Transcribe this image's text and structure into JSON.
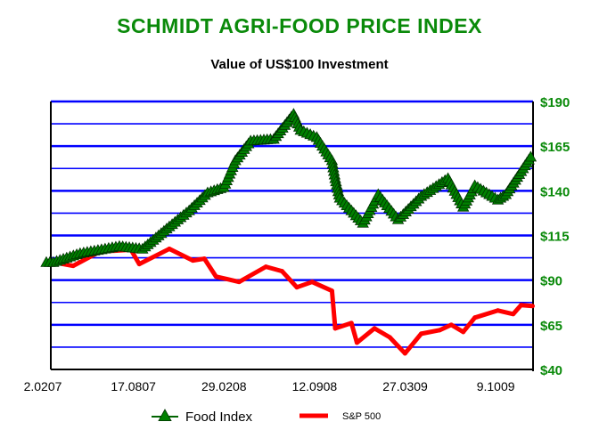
{
  "chart_data": {
    "type": "line",
    "title": "SCHMIDT AGRI-FOOD PRICE INDEX",
    "subtitle": "Value of US$100 Investment",
    "xlim": [
      "2007-02-02",
      "2009-12-21"
    ],
    "ylim": [
      40,
      190
    ],
    "y_axis_side": "right",
    "y_ticks": [
      {
        "v": 190,
        "label": "$190"
      },
      {
        "v": 165,
        "label": "$165"
      },
      {
        "v": 140,
        "label": "$140"
      },
      {
        "v": 115,
        "label": "$115"
      },
      {
        "v": 90,
        "label": "$90"
      },
      {
        "v": 65,
        "label": "$65"
      },
      {
        "v": 40,
        "label": "$40"
      }
    ],
    "gridlines_every": 12.5,
    "grid": true,
    "grid_color": "#0000ff",
    "x_ticks": [
      {
        "date": "2007-02-02",
        "label": "2.0207"
      },
      {
        "date": "2007-08-17",
        "label": "17.0807"
      },
      {
        "date": "2008-02-29",
        "label": "29.0208"
      },
      {
        "date": "2008-09-12",
        "label": "12.0908"
      },
      {
        "date": "2009-03-27",
        "label": "27.0309"
      },
      {
        "date": "2009-10-09",
        "label": "9.1009"
      }
    ],
    "legend_position": "bottom",
    "series": [
      {
        "name": "Food Index",
        "color": "#006400",
        "marker": "triangle",
        "marker_color": "#008000",
        "points": [
          [
            "2007-02-02",
            100
          ],
          [
            "2007-02-17",
            100
          ],
          [
            "2007-04-16",
            105
          ],
          [
            "2007-07-10",
            109
          ],
          [
            "2007-08-29",
            107.5
          ],
          [
            "2007-10-26",
            120
          ],
          [
            "2007-12-08",
            129
          ],
          [
            "2008-01-17",
            139
          ],
          [
            "2008-02-21",
            142
          ],
          [
            "2008-03-17",
            157
          ],
          [
            "2008-04-19",
            168
          ],
          [
            "2008-06-08",
            169
          ],
          [
            "2008-07-21",
            183
          ],
          [
            "2008-08-05",
            174
          ],
          [
            "2008-09-09",
            170
          ],
          [
            "2008-10-12",
            157
          ],
          [
            "2008-10-19",
            147
          ],
          [
            "2008-10-29",
            136
          ],
          [
            "2008-12-18",
            122
          ],
          [
            "2009-01-20",
            138
          ],
          [
            "2009-03-04",
            124
          ],
          [
            "2009-04-23",
            137
          ],
          [
            "2009-06-20",
            147
          ],
          [
            "2009-07-23",
            131
          ],
          [
            "2009-08-17",
            143
          ],
          [
            "2009-10-06",
            135
          ],
          [
            "2009-10-23",
            138
          ],
          [
            "2009-12-16",
            159
          ]
        ]
      },
      {
        "name": "S&P 500",
        "color": "#ff0000",
        "points": [
          [
            "2007-02-02",
            100
          ],
          [
            "2007-02-17",
            100
          ],
          [
            "2007-04-01",
            98
          ],
          [
            "2007-05-29",
            106
          ],
          [
            "2007-08-04",
            107
          ],
          [
            "2007-08-22",
            99
          ],
          [
            "2007-10-26",
            107.5
          ],
          [
            "2007-12-16",
            101
          ],
          [
            "2008-01-10",
            102
          ],
          [
            "2008-02-04",
            92
          ],
          [
            "2008-03-25",
            89
          ],
          [
            "2008-05-22",
            97.5
          ],
          [
            "2008-06-26",
            95
          ],
          [
            "2008-07-28",
            86
          ],
          [
            "2008-08-30",
            89
          ],
          [
            "2008-10-12",
            84
          ],
          [
            "2008-10-19",
            63
          ],
          [
            "2008-11-23",
            66
          ],
          [
            "2008-12-05",
            55
          ],
          [
            "2009-01-12",
            63
          ],
          [
            "2009-02-14",
            58
          ],
          [
            "2009-03-19",
            49
          ],
          [
            "2009-04-23",
            60
          ],
          [
            "2009-06-02",
            62
          ],
          [
            "2009-06-27",
            65
          ],
          [
            "2009-07-23",
            61
          ],
          [
            "2009-08-17",
            69
          ],
          [
            "2009-10-06",
            73
          ],
          [
            "2009-11-08",
            71
          ],
          [
            "2009-11-25",
            76
          ],
          [
            "2009-12-20",
            75.5
          ]
        ]
      }
    ]
  }
}
